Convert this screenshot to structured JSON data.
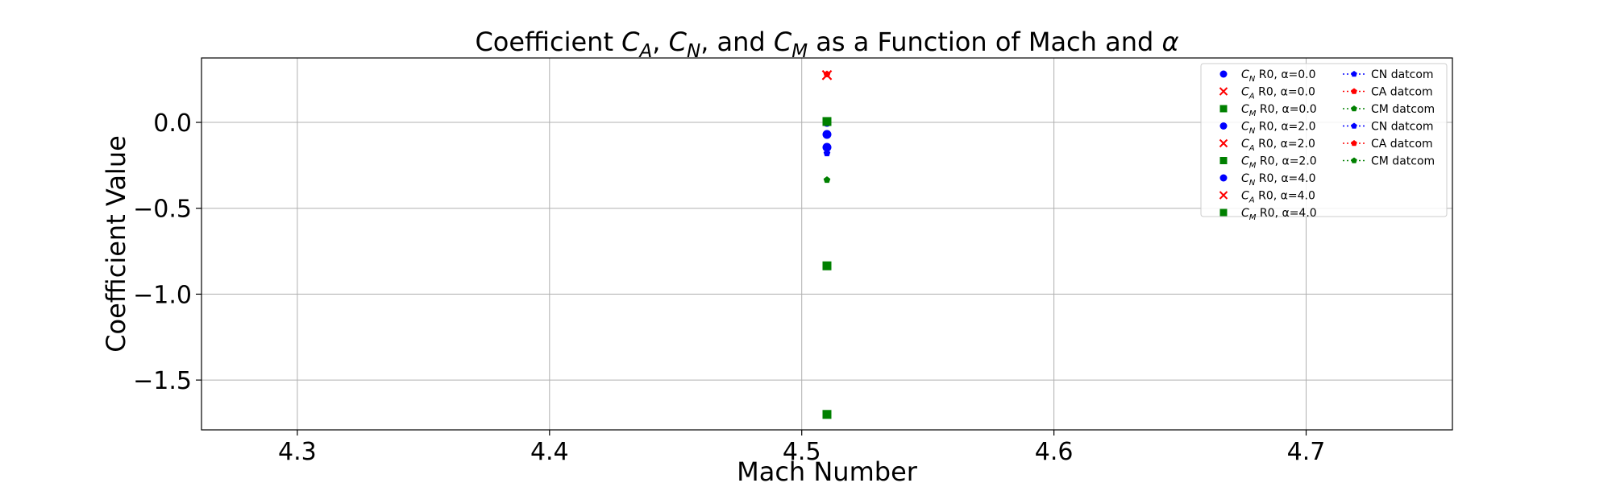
{
  "chart_data": {
    "type": "scatter",
    "title": {
      "prefix": "Coefficient ",
      "a_base": "C",
      "a_sub": "A",
      "sep1": ", ",
      "n_base": "C",
      "n_sub": "N",
      "sep2": ", and ",
      "m_base": "C",
      "m_sub": "M",
      "suffix": " as a Function of Mach and ",
      "alpha": "α"
    },
    "xlabel": "Mach Number",
    "ylabel": "Coefficient Value",
    "xlim": [
      4.262,
      4.758
    ],
    "ylim": [
      -1.79,
      0.375
    ],
    "xticks": [
      4.3,
      4.4,
      4.5,
      4.6,
      4.7
    ],
    "xtick_labels": [
      "4.3",
      "4.4",
      "4.5",
      "4.6",
      "4.7"
    ],
    "yticks": [
      0.0,
      -0.5,
      -1.0,
      -1.5
    ],
    "ytick_labels": [
      "0.0",
      "−0.5",
      "−1.0",
      "−1.5"
    ],
    "grid": true,
    "legend_position": "top-right",
    "series": [
      {
        "base": "C",
        "sub": "N",
        "name": " R0, α=0.0",
        "marker": "circle",
        "color": "#0000ff",
        "x": [
          4.51
        ],
        "y": [
          0.0
        ]
      },
      {
        "base": "C",
        "sub": "A",
        "name": " R0, α=0.0",
        "marker": "x",
        "color": "#ff0000",
        "x": [
          4.51
        ],
        "y": [
          0.275
        ]
      },
      {
        "base": "C",
        "sub": "M",
        "name": " R0, α=0.0",
        "marker": "square",
        "color": "#008000",
        "x": [
          4.51
        ],
        "y": [
          0.005
        ]
      },
      {
        "base": "C",
        "sub": "N",
        "name": " R0, α=2.0",
        "marker": "circle",
        "color": "#0000ff",
        "x": [
          4.51
        ],
        "y": [
          -0.07
        ]
      },
      {
        "base": "C",
        "sub": "A",
        "name": " R0, α=2.0",
        "marker": "x",
        "color": "#ff0000",
        "x": [
          4.51
        ],
        "y": [
          0.275
        ]
      },
      {
        "base": "C",
        "sub": "M",
        "name": " R0, α=2.0",
        "marker": "square",
        "color": "#008000",
        "x": [
          4.51
        ],
        "y": [
          -0.835
        ]
      },
      {
        "base": "C",
        "sub": "N",
        "name": " R0, α=4.0",
        "marker": "circle",
        "color": "#0000ff",
        "x": [
          4.51
        ],
        "y": [
          -0.145
        ]
      },
      {
        "base": "C",
        "sub": "A",
        "name": " R0, α=4.0",
        "marker": "x",
        "color": "#ff0000",
        "x": [
          4.51
        ],
        "y": [
          0.275
        ]
      },
      {
        "base": "C",
        "sub": "M",
        "name": " R0, α=4.0",
        "marker": "square",
        "color": "#008000",
        "x": [
          4.51
        ],
        "y": [
          -1.7
        ]
      },
      {
        "base": "",
        "sub": "",
        "name": "CN datcom",
        "marker": "pentagon",
        "color": "#0000ff",
        "line": "dotted",
        "x": [
          4.51
        ],
        "y": [
          -0.155
        ]
      },
      {
        "base": "",
        "sub": "",
        "name": "CA datcom",
        "marker": "pentagon",
        "color": "#ff0000",
        "line": "dotted",
        "x": [
          4.51
        ],
        "y": [
          0.28
        ]
      },
      {
        "base": "",
        "sub": "",
        "name": "CM datcom",
        "marker": "pentagon",
        "color": "#008000",
        "line": "dotted",
        "x": [
          4.51
        ],
        "y": [
          0.0
        ]
      },
      {
        "base": "",
        "sub": "",
        "name": "CN datcom",
        "marker": "pentagon",
        "color": "#0000ff",
        "line": "dotted",
        "x": [
          4.51
        ],
        "y": [
          -0.18
        ]
      },
      {
        "base": "",
        "sub": "",
        "name": "CA datcom",
        "marker": "pentagon",
        "color": "#ff0000",
        "line": "dotted",
        "x": [
          4.51
        ],
        "y": [
          0.28
        ]
      },
      {
        "base": "",
        "sub": "",
        "name": "CM datcom",
        "marker": "pentagon",
        "color": "#008000",
        "line": "dotted",
        "x": [
          4.51
        ],
        "y": [
          -0.335
        ]
      }
    ]
  }
}
